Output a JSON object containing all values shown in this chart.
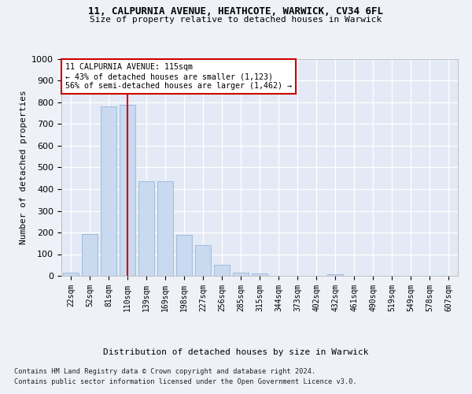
{
  "title1": "11, CALPURNIA AVENUE, HEATHCOTE, WARWICK, CV34 6FL",
  "title2": "Size of property relative to detached houses in Warwick",
  "xlabel": "Distribution of detached houses by size in Warwick",
  "ylabel": "Number of detached properties",
  "categories": [
    "22sqm",
    "52sqm",
    "81sqm",
    "110sqm",
    "139sqm",
    "169sqm",
    "198sqm",
    "227sqm",
    "256sqm",
    "285sqm",
    "315sqm",
    "344sqm",
    "373sqm",
    "402sqm",
    "432sqm",
    "461sqm",
    "490sqm",
    "519sqm",
    "549sqm",
    "578sqm",
    "607sqm"
  ],
  "values": [
    15,
    193,
    783,
    790,
    435,
    435,
    190,
    143,
    50,
    15,
    10,
    0,
    0,
    0,
    8,
    0,
    0,
    0,
    0,
    0,
    0
  ],
  "bar_color": "#c8d9f0",
  "bar_edge_color": "#9ab4d8",
  "vline_x": 3,
  "vline_color": "#cc0000",
  "annotation_text": "11 CALPURNIA AVENUE: 115sqm\n← 43% of detached houses are smaller (1,123)\n56% of semi-detached houses are larger (1,462) →",
  "annotation_box_color": "#ffffff",
  "annotation_box_edge": "#cc0000",
  "ylim": [
    0,
    1000
  ],
  "yticks": [
    0,
    100,
    200,
    300,
    400,
    500,
    600,
    700,
    800,
    900,
    1000
  ],
  "footer1": "Contains HM Land Registry data © Crown copyright and database right 2024.",
  "footer2": "Contains public sector information licensed under the Open Government Licence v3.0.",
  "bg_color": "#eef2f8",
  "plot_bg_color": "#e4eaf5"
}
